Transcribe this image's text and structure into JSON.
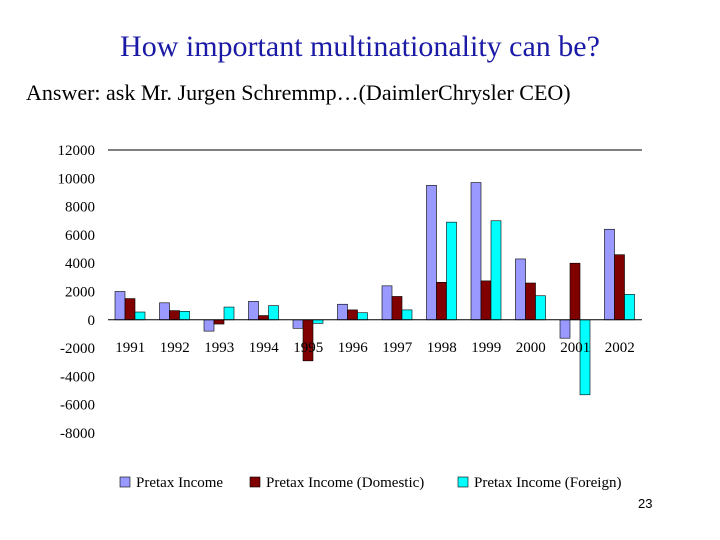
{
  "slide": {
    "title": "How important multinationality can be?",
    "subtitle": "Answer: ask Mr. Jurgen Schremmp…(DaimlerChrysler CEO)",
    "page_number": "23"
  },
  "chart_data": {
    "type": "bar",
    "title": "",
    "xlabel": "",
    "ylabel": "",
    "ylim": [
      -8000,
      12000
    ],
    "yticks": [
      12000,
      10000,
      8000,
      6000,
      4000,
      2000,
      0,
      -2000,
      -4000,
      -6000,
      -8000
    ],
    "categories": [
      "1991",
      "1992",
      "1993",
      "1994",
      "1995",
      "1996",
      "1997",
      "1998",
      "1999",
      "2000",
      "2001",
      "2002"
    ],
    "series": [
      {
        "name": "Pretax Income",
        "color": "#9999ff",
        "values": [
          2000,
          1200,
          -800,
          1300,
          -600,
          1100,
          2400,
          9500,
          9700,
          4300,
          -1300,
          6400
        ]
      },
      {
        "name": "Pretax Income (Domestic)",
        "color": "#800000",
        "values": [
          1500,
          650,
          -300,
          300,
          -2900,
          700,
          1650,
          2650,
          2750,
          2600,
          4000,
          4600
        ]
      },
      {
        "name": "Pretax Income (Foreign)",
        "color": "#00ffff",
        "values": [
          550,
          600,
          900,
          1000,
          -250,
          500,
          700,
          6900,
          7000,
          1700,
          -5300,
          1800
        ]
      }
    ],
    "grid": false,
    "legend": "bottom"
  }
}
